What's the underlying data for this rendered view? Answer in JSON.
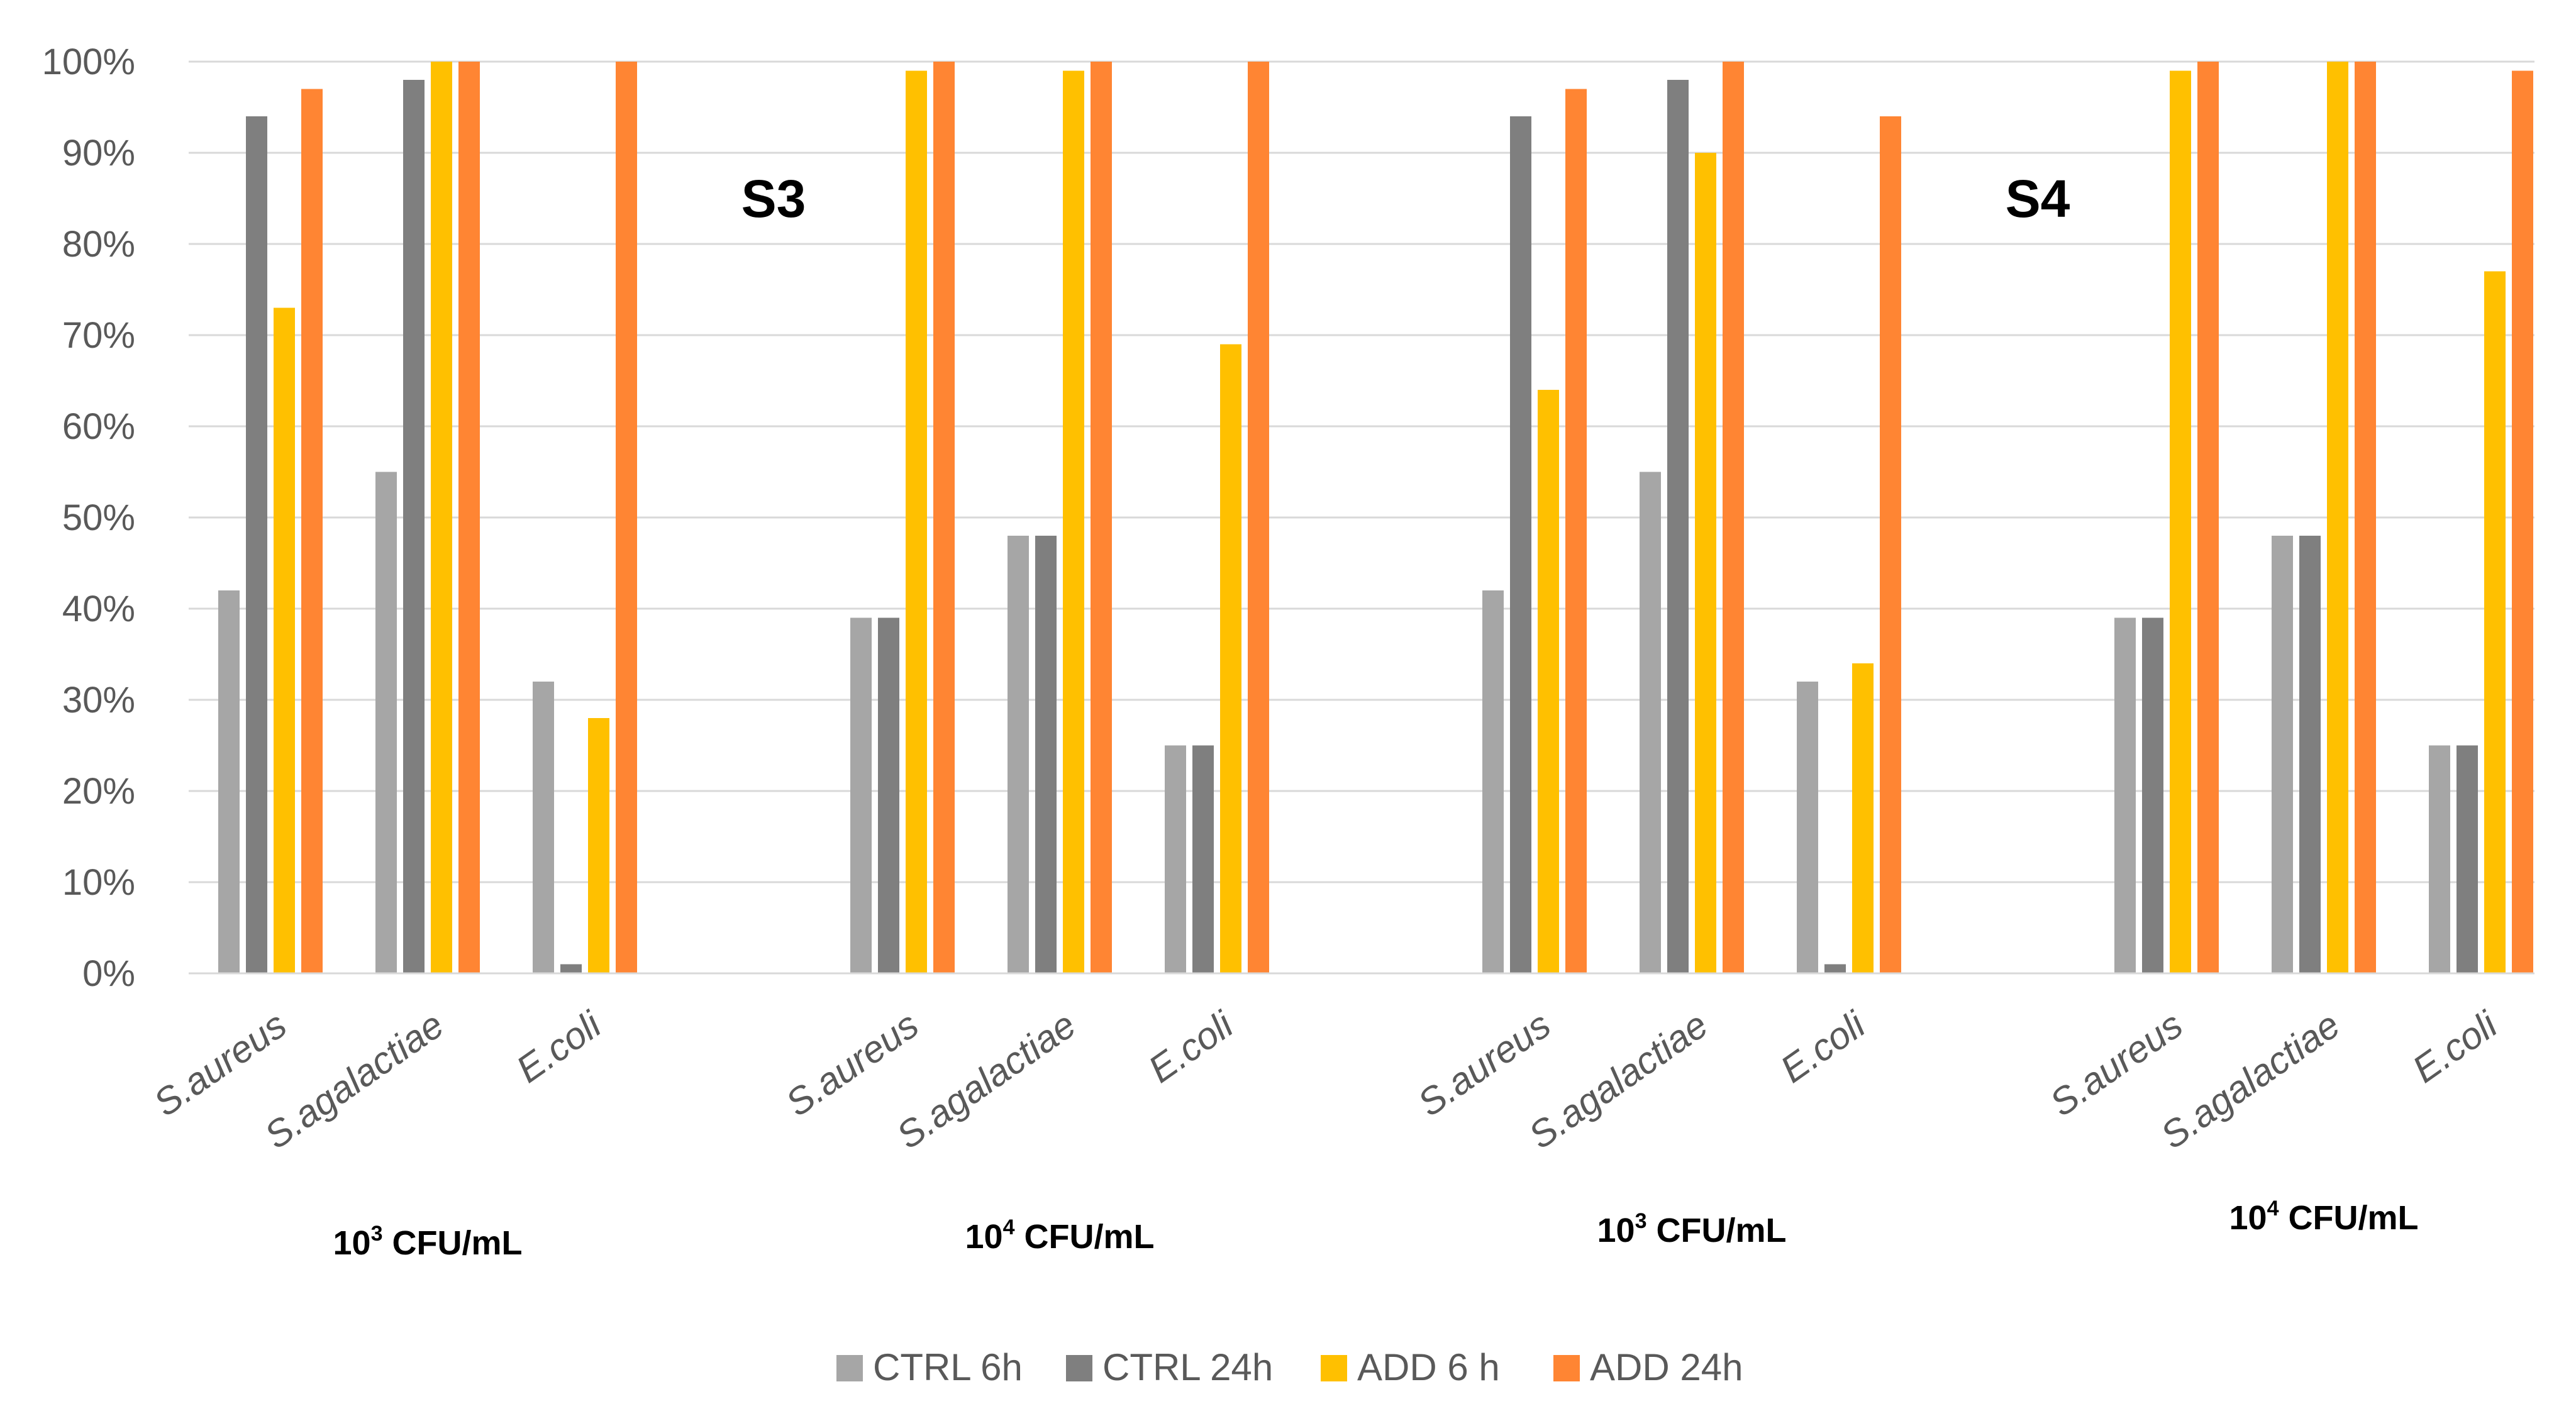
{
  "chart_data": {
    "type": "bar",
    "ylim": [
      0,
      100
    ],
    "ytick_step": 10,
    "ytick_suffix": "%",
    "grid": true,
    "legend_position": "bottom",
    "panel_labels": [
      "S3",
      "S4"
    ],
    "groups": [
      {
        "base": "10",
        "exp": "3",
        "unit": " CFU/mL"
      },
      {
        "base": "10",
        "exp": "4",
        "unit": " CFU/mL"
      },
      {
        "base": "10",
        "exp": "3",
        "unit": " CFU/mL"
      },
      {
        "base": "10",
        "exp": "4",
        "unit": " CFU/mL"
      }
    ],
    "categories": [
      "S.aureus",
      "S.agalactiae",
      "E.coli",
      "S.aureus",
      "S.agalactiae",
      "E.coli",
      "S.aureus",
      "S.agalactiae",
      "E.coli",
      "S.aureus",
      "S.agalactiae",
      "E.coli"
    ],
    "series": [
      {
        "name": "CTRL 6h",
        "color": "#a6a6a6",
        "values": [
          42,
          55,
          32,
          39,
          48,
          25,
          42,
          55,
          32,
          39,
          48,
          25
        ]
      },
      {
        "name": "CTRL 24h",
        "color": "#7f7f7f",
        "values": [
          94,
          98,
          1,
          39,
          48,
          25,
          94,
          98,
          1,
          39,
          48,
          25
        ]
      },
      {
        "name": "ADD 6 h",
        "color": "#ffc000",
        "values": [
          73,
          100,
          28,
          99,
          99,
          69,
          64,
          90,
          34,
          99,
          100,
          77
        ]
      },
      {
        "name": "ADD 24h",
        "color": "#ff8533",
        "values": [
          97,
          100,
          100,
          100,
          100,
          100,
          97,
          100,
          94,
          100,
          100,
          99
        ]
      }
    ]
  }
}
